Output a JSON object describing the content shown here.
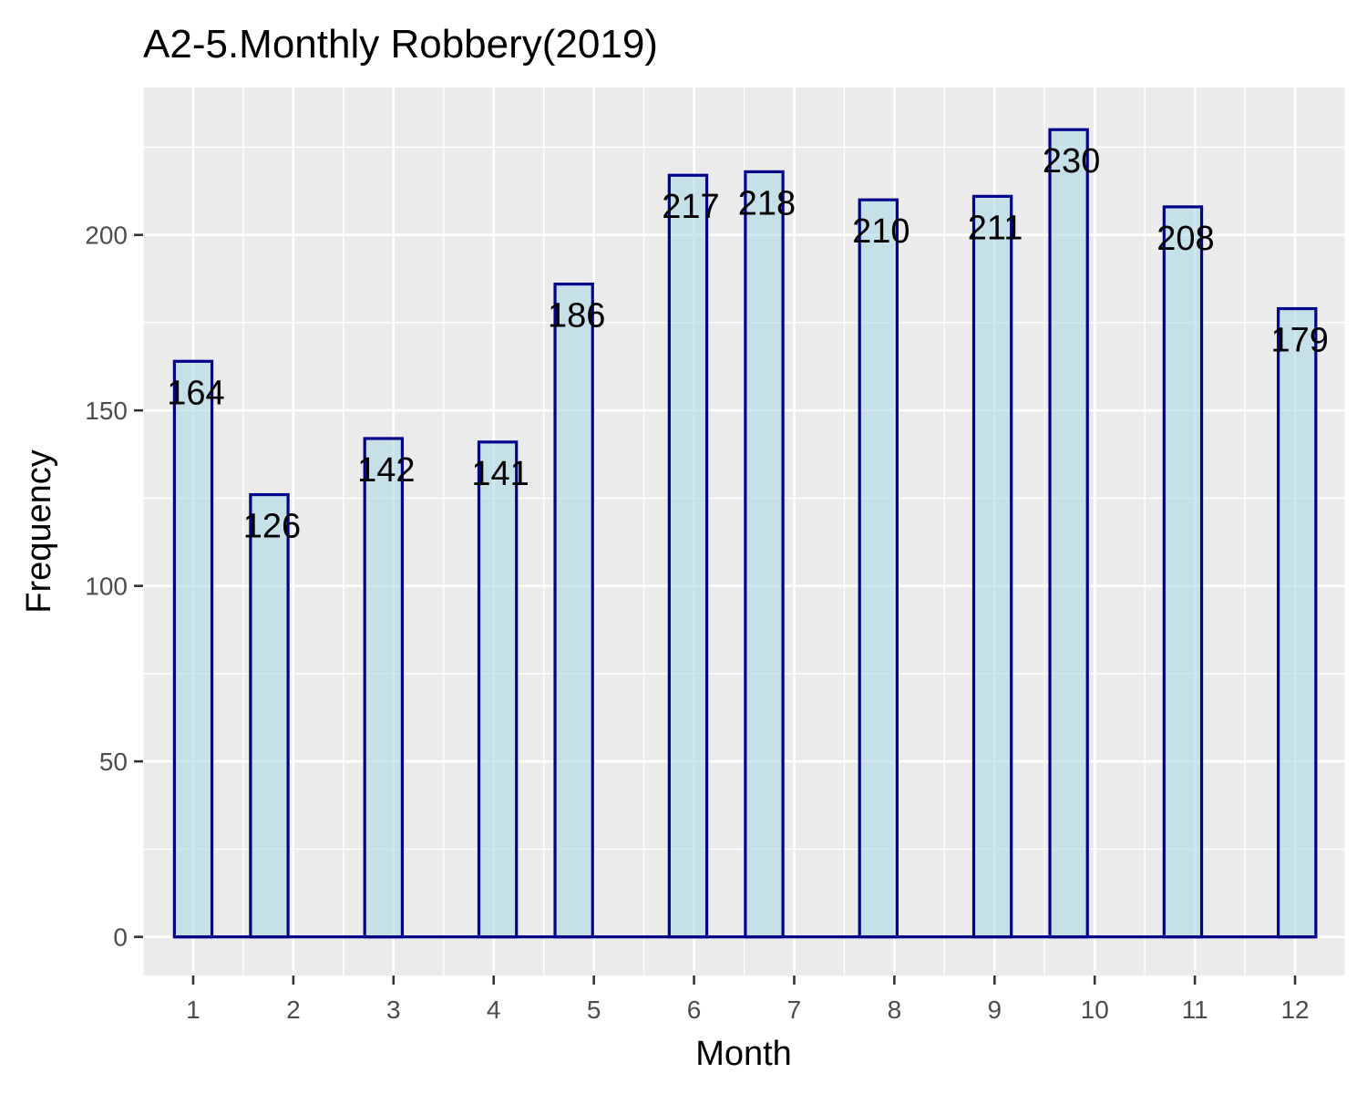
{
  "chart_data": {
    "type": "bar",
    "title": "A2-5.Monthly Robbery(2019)",
    "xlabel": "Month",
    "ylabel": "Frequency",
    "x_ticks": [
      "1",
      "2",
      "3",
      "4",
      "5",
      "6",
      "7",
      "8",
      "9",
      "10",
      "11",
      "12"
    ],
    "y_ticks": [
      "0",
      "50",
      "100",
      "150",
      "200"
    ],
    "ylim": [
      -11,
      242
    ],
    "xlim": [
      0.5,
      12.5
    ],
    "grid": true,
    "colors": {
      "panel_background": "#ebebeb",
      "grid": "#ffffff",
      "bar_fill": "#add8e6",
      "bar_outline": "#00008b"
    },
    "bars": [
      {
        "x": 1.0,
        "value": 164,
        "label": "164"
      },
      {
        "x": 1.76,
        "value": 126,
        "label": "126"
      },
      {
        "x": 2.9,
        "value": 142,
        "label": "142"
      },
      {
        "x": 4.04,
        "value": 141,
        "label": "141"
      },
      {
        "x": 4.8,
        "value": 186,
        "label": "186"
      },
      {
        "x": 5.94,
        "value": 217,
        "label": "217"
      },
      {
        "x": 6.7,
        "value": 218,
        "label": "218"
      },
      {
        "x": 7.84,
        "value": 210,
        "label": "210"
      },
      {
        "x": 8.98,
        "value": 211,
        "label": "211"
      },
      {
        "x": 9.74,
        "value": 230,
        "label": "230"
      },
      {
        "x": 10.88,
        "value": 208,
        "label": "208"
      },
      {
        "x": 12.02,
        "value": 179,
        "label": "179"
      }
    ]
  }
}
